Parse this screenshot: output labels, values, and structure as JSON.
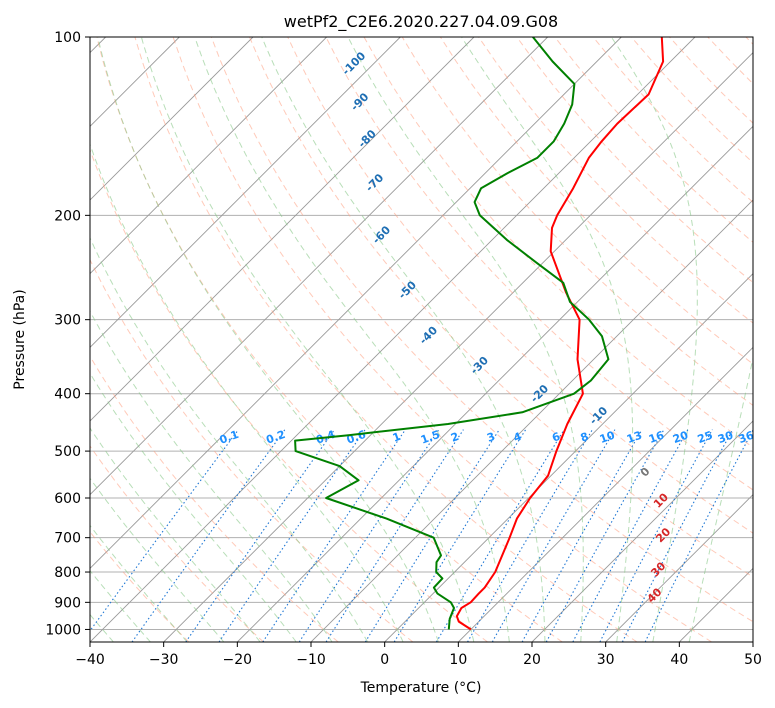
{
  "title": "wetPf2_C2E6.2020.227.04.09.G08",
  "colors": {
    "temperature": "#ff0000",
    "dewpoint": "#008000",
    "isotherm": "#999999",
    "dry_adiabat": "#ff9e80",
    "moist_adiabat": "#88c888",
    "mixing_ratio": "#1f77d4",
    "dry_adiabat_label": "#d62728",
    "moist_adiabat_label": "#1f6fb4",
    "mixing_ratio_label": "#1e90ff"
  },
  "chart_data": {
    "type": "line",
    "title": "wetPf2_C2E6.2020.227.04.09.G08",
    "xlabel": "Temperature (°C)",
    "ylabel": "Pressure (hPa)",
    "xlim": [
      -40,
      50
    ],
    "ylim": [
      1050,
      100
    ],
    "yscale": "log",
    "skew": true,
    "grid": true,
    "x_ticks": [
      -40,
      -30,
      -20,
      -10,
      0,
      10,
      20,
      30,
      40,
      50
    ],
    "y_ticks": [
      100,
      200,
      300,
      400,
      500,
      600,
      700,
      800,
      900,
      1000
    ],
    "series": [
      {
        "name": "",
        "color": "#ff0000",
        "points": [
          [
            1000,
            10
          ],
          [
            970,
            7.3
          ],
          [
            950,
            6.3
          ],
          [
            920,
            5.8
          ],
          [
            900,
            6.3
          ],
          [
            870,
            6.2
          ],
          [
            850,
            6.2
          ],
          [
            800,
            5.5
          ],
          [
            750,
            4.2
          ],
          [
            700,
            2.8
          ],
          [
            650,
            1.2
          ],
          [
            600,
            0.2
          ],
          [
            550,
            -0.4
          ],
          [
            500,
            -2.6
          ],
          [
            450,
            -4.8
          ],
          [
            400,
            -6.8
          ],
          [
            350,
            -12.2
          ],
          [
            300,
            -17.3
          ],
          [
            270,
            -22.8
          ],
          [
            250,
            -26.5
          ],
          [
            230,
            -30.5
          ],
          [
            210,
            -33.5
          ],
          [
            200,
            -34.5
          ],
          [
            180,
            -36.0
          ],
          [
            160,
            -38.0
          ],
          [
            150,
            -38.5
          ],
          [
            140,
            -38.8
          ],
          [
            125,
            -38.5
          ],
          [
            110,
            -41.0
          ],
          [
            100,
            -44.5
          ]
        ]
      },
      {
        "name": "",
        "color": "#008000",
        "points": [
          [
            1000,
            7.0
          ],
          [
            960,
            5.7
          ],
          [
            920,
            4.8
          ],
          [
            900,
            3.6
          ],
          [
            870,
            0.6
          ],
          [
            850,
            -0.7
          ],
          [
            820,
            -0.8
          ],
          [
            800,
            -2.5
          ],
          [
            770,
            -3.8
          ],
          [
            750,
            -4.1
          ],
          [
            700,
            -7.5
          ],
          [
            650,
            -16.5
          ],
          [
            600,
            -27.5
          ],
          [
            560,
            -25.5
          ],
          [
            530,
            -30.0
          ],
          [
            500,
            -38.0
          ],
          [
            480,
            -39.5
          ],
          [
            470,
            -33.0
          ],
          [
            450,
            -21.0
          ],
          [
            430,
            -12.5
          ],
          [
            400,
            -8.0
          ],
          [
            380,
            -7.5
          ],
          [
            350,
            -8.0
          ],
          [
            320,
            -12.0
          ],
          [
            300,
            -16.0
          ],
          [
            280,
            -21.0
          ],
          [
            260,
            -24.5
          ],
          [
            240,
            -31.0
          ],
          [
            220,
            -38.0
          ],
          [
            200,
            -45.0
          ],
          [
            190,
            -47.5
          ],
          [
            180,
            -48.5
          ],
          [
            170,
            -47.0
          ],
          [
            160,
            -45.0
          ],
          [
            150,
            -45.0
          ],
          [
            140,
            -46.0
          ],
          [
            130,
            -47.5
          ],
          [
            120,
            -50.0
          ],
          [
            110,
            -56.0
          ],
          [
            100,
            -62.0
          ]
        ]
      }
    ],
    "dry_adiabat_labels": [
      0,
      10,
      20,
      30,
      40
    ],
    "moist_adiabat_labels": [
      -100,
      -90,
      -80,
      -70,
      -60,
      -50,
      -40,
      -30,
      -20,
      -10
    ],
    "mixing_ratio_labels": [
      0.1,
      0.2,
      0.4,
      0.6,
      1,
      1.5,
      2,
      3,
      4,
      6,
      8,
      10,
      13,
      16,
      20,
      25,
      30,
      36
    ],
    "mixing_ratio_label_pressure": 480
  }
}
